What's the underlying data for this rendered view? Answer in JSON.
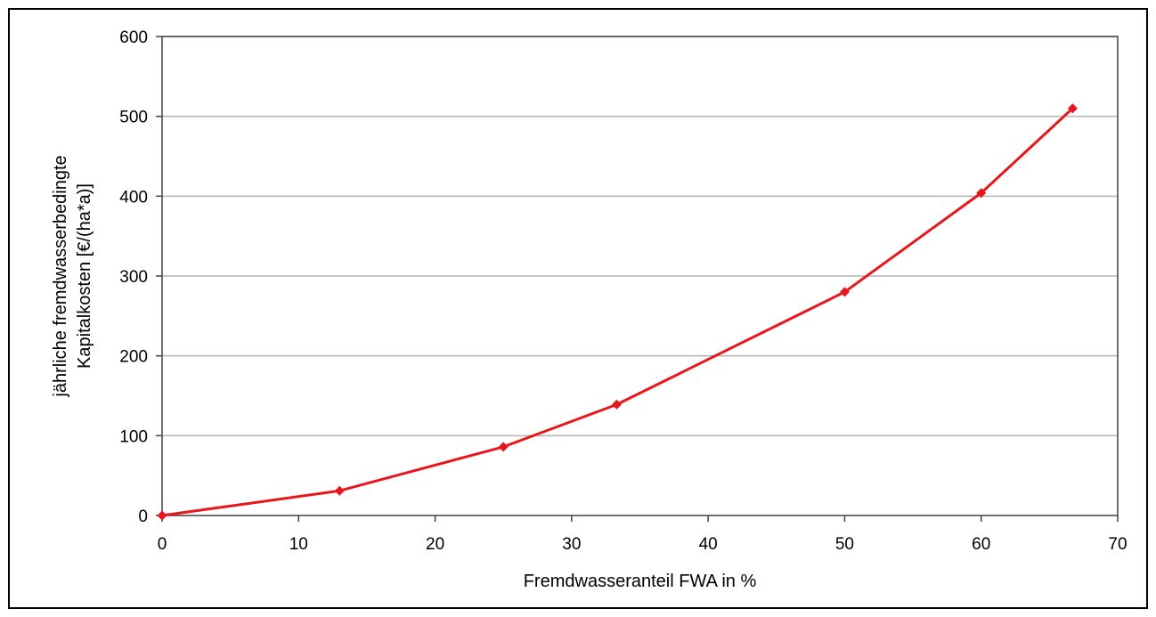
{
  "chart_data": {
    "type": "line",
    "title": "",
    "xlabel": "Fremdwasseranteil FWA in %",
    "ylabel_lines": [
      "jährliche fremdwasserbedingte",
      "Kapitalkosten [€/(ha*a)]"
    ],
    "xlim": [
      0,
      70
    ],
    "ylim": [
      0,
      600
    ],
    "x_ticks": [
      0,
      10,
      20,
      30,
      40,
      50,
      60,
      70
    ],
    "y_ticks": [
      0,
      100,
      200,
      300,
      400,
      500,
      600
    ],
    "grid": "horizontal",
    "legend": "none",
    "colors": {
      "series": "#e8161b",
      "grid": "#b3b3b3",
      "axis": "#404040"
    },
    "series": [
      {
        "marker": "diamond",
        "x": [
          0,
          13,
          25,
          33.3,
          50,
          60,
          66.7
        ],
        "y": [
          0,
          31,
          86,
          139,
          280,
          404,
          510
        ]
      }
    ]
  }
}
